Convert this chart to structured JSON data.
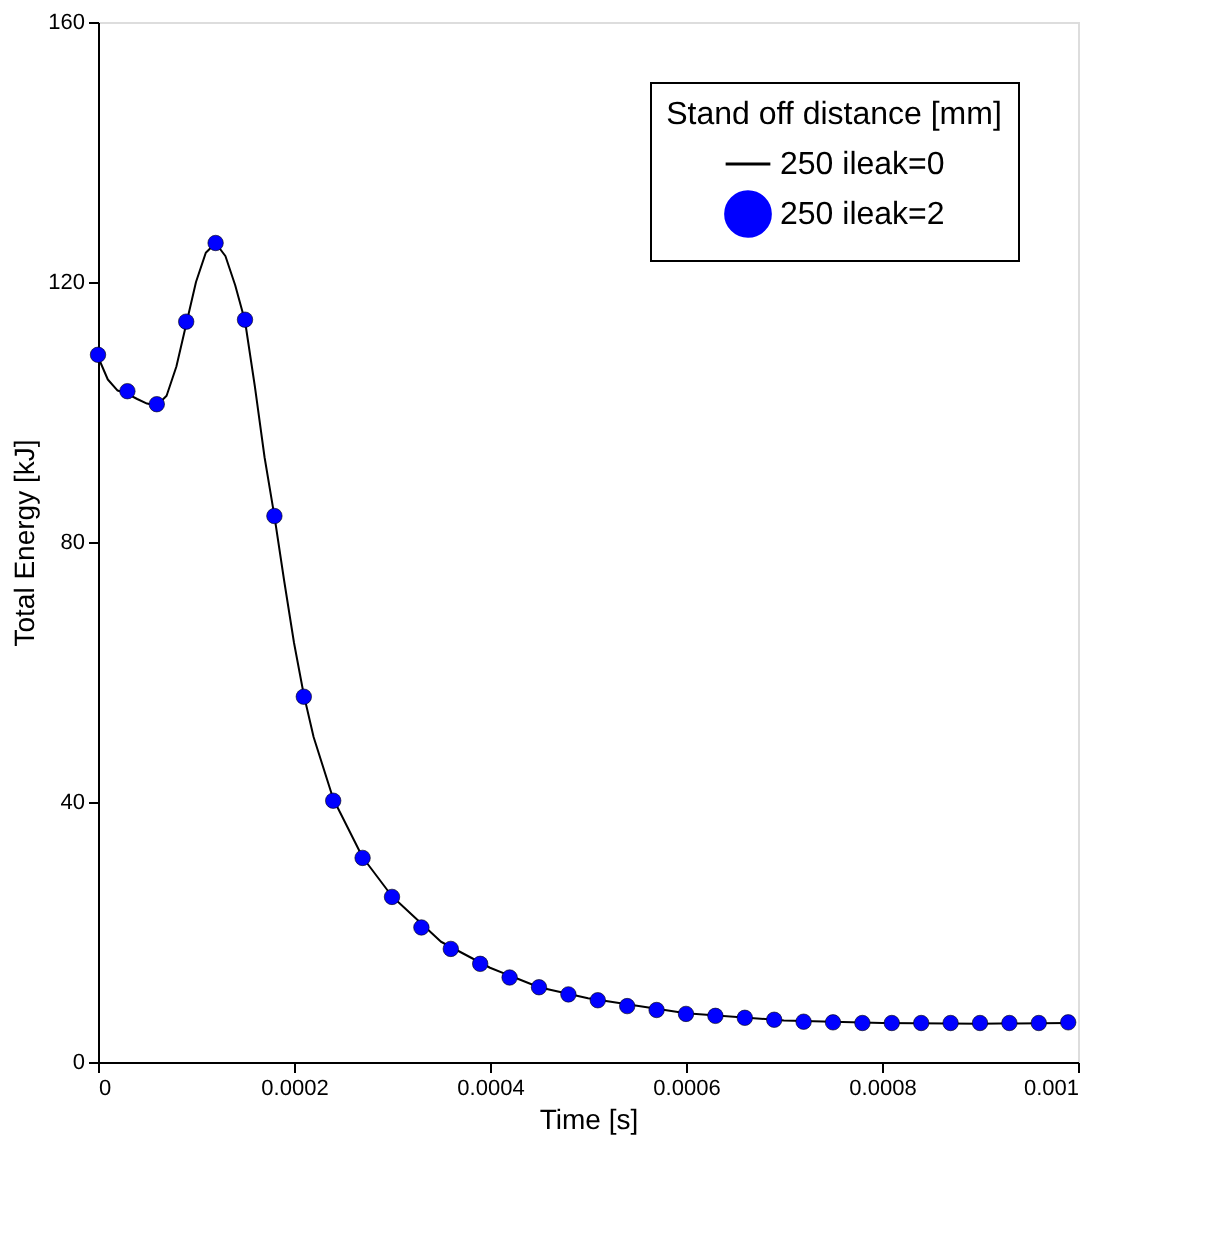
{
  "chart_data": {
    "type": "line",
    "xlabel": "Time [s]",
    "ylabel": "Total Energy [kJ]",
    "legend_title": "Stand off distance [mm]",
    "legend": "top right",
    "grid": false,
    "xlim": [
      0,
      0.001
    ],
    "xticks": [
      0,
      0.0002,
      0.0004,
      0.0006,
      0.0008,
      0.001
    ],
    "ylim": [
      0,
      160
    ],
    "yticks": [
      0,
      40,
      80,
      120,
      160
    ],
    "series": [
      {
        "name": "250 ileak=0",
        "color": "#000000",
        "marker": "none",
        "line_style": "solid",
        "x": [
          0,
          1e-05,
          2e-05,
          3e-05,
          4e-05,
          5e-05,
          6e-05,
          7e-05,
          8e-05,
          9e-05,
          0.0001,
          0.00011,
          0.00012,
          0.00013,
          0.00014,
          0.00015,
          0.00016,
          0.00017,
          0.00018,
          0.00019,
          0.0002,
          0.00021,
          0.00022,
          0.00024,
          0.00027,
          0.0003,
          0.00035,
          0.0004,
          0.00045,
          0.0005,
          0.0006,
          0.0007,
          0.0008,
          0.0009,
          0.00099
        ],
        "values": [
          108.5,
          105,
          103.3,
          102.8,
          102,
          101.3,
          101,
          102.5,
          107,
          113.5,
          120,
          124.5,
          126,
          124,
          119.5,
          114,
          104,
          93,
          84,
          74,
          64.5,
          56.5,
          50,
          40.5,
          31.5,
          25.5,
          18.5,
          14.5,
          11.5,
          9.8,
          7.5,
          6.4,
          6.0,
          5.9,
          6.0
        ]
      },
      {
        "name": "250 ileak=2",
        "type": "scatter",
        "color": "#0000ff",
        "marker": "circle",
        "x": [
          0,
          3e-05,
          6e-05,
          9e-05,
          0.00012,
          0.00015,
          0.00018,
          0.00021,
          0.00024,
          0.00027,
          0.0003,
          0.00033,
          0.00036,
          0.00039,
          0.00042,
          0.00045,
          0.00048,
          0.00051,
          0.00054,
          0.00057,
          0.0006,
          0.00063,
          0.00066,
          0.00069,
          0.00072,
          0.00075,
          0.00078,
          0.00081,
          0.00084,
          0.00087,
          0.0009,
          0.00093,
          0.00096,
          0.00099
        ],
        "values": [
          108.8,
          103.2,
          101.2,
          113.9,
          126,
          114.2,
          84,
          56.2,
          40.2,
          31.4,
          25.4,
          20.7,
          17.4,
          15.1,
          13,
          11.5,
          10.4,
          9.5,
          8.6,
          8.0,
          7.4,
          7.1,
          6.8,
          6.5,
          6.2,
          6.1,
          6.0,
          6.0,
          6.0,
          6.0,
          6.0,
          6.0,
          6.0,
          6.1
        ]
      }
    ]
  }
}
